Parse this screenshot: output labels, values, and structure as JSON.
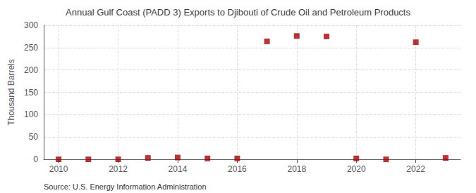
{
  "chart_data": {
    "type": "scatter",
    "title": "Annual Gulf Coast (PADD 3) Exports to Djibouti of Crude Oil and Petroleum Products",
    "ylabel": "Thousand Barrels",
    "annotation": "Source: U.S. Energy Information Administration",
    "x": [
      2010,
      2011,
      2012,
      2013,
      2014,
      2015,
      2016,
      2017,
      2018,
      2019,
      2020,
      2021,
      2022,
      2023
    ],
    "values": [
      0,
      0,
      0,
      3,
      4,
      2,
      2,
      264,
      276,
      275,
      2,
      0,
      262,
      3
    ],
    "color": "#aa0000",
    "marker": "square",
    "xlim": [
      2009.5,
      2023.5
    ],
    "ylim": [
      0,
      300
    ],
    "xticks": [
      2010,
      2012,
      2014,
      2016,
      2018,
      2020,
      2022
    ],
    "yticks": [
      0,
      50,
      100,
      150,
      200,
      250,
      300
    ],
    "grid": true
  }
}
